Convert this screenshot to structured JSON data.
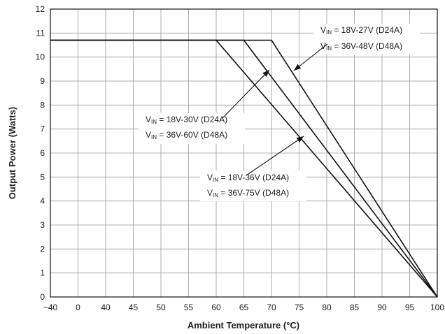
{
  "chart_data": {
    "type": "line",
    "title": "",
    "xlabel": "Ambient Temperature (°C)",
    "ylabel": "Output Power (Watts)",
    "x_ticks": [
      "−40",
      "0",
      "40",
      "45",
      "50",
      "55",
      "60",
      "65",
      "70",
      "75",
      "80",
      "85",
      "90",
      "95",
      "100"
    ],
    "y_ticks": [
      "0",
      "1",
      "2",
      "3",
      "4",
      "5",
      "6",
      "7",
      "8",
      "9",
      "10",
      "11",
      "12"
    ],
    "ylim": [
      0,
      12
    ],
    "grid": true,
    "series": [
      {
        "x": [
          "−40",
          "60",
          "100"
        ],
        "y": [
          10.7,
          10.7,
          0
        ]
      },
      {
        "x": [
          "−40",
          "65",
          "100"
        ],
        "y": [
          10.7,
          10.7,
          0
        ]
      },
      {
        "x": [
          "−40",
          "70",
          "100"
        ],
        "y": [
          10.7,
          10.7,
          0
        ]
      }
    ],
    "annotations": [
      {
        "lines": [
          {
            "v": "V",
            "sub": "IN",
            "rest": " = 18V-27V (D24A)"
          },
          {
            "v": "V",
            "sub": "IN",
            "rest": " = 36V-48V (D48A)"
          }
        ]
      },
      {
        "lines": [
          {
            "v": "V",
            "sub": "IN",
            "rest": " = 18V-30V (D24A)"
          },
          {
            "v": "V",
            "sub": "IN",
            "rest": " = 36V-60V (D48A)"
          }
        ]
      },
      {
        "lines": [
          {
            "v": "V",
            "sub": "IN",
            "rest": " = 18V-36V (D24A)"
          },
          {
            "v": "V",
            "sub": "IN",
            "rest": " = 36V-75V (D48A)"
          }
        ]
      }
    ]
  }
}
